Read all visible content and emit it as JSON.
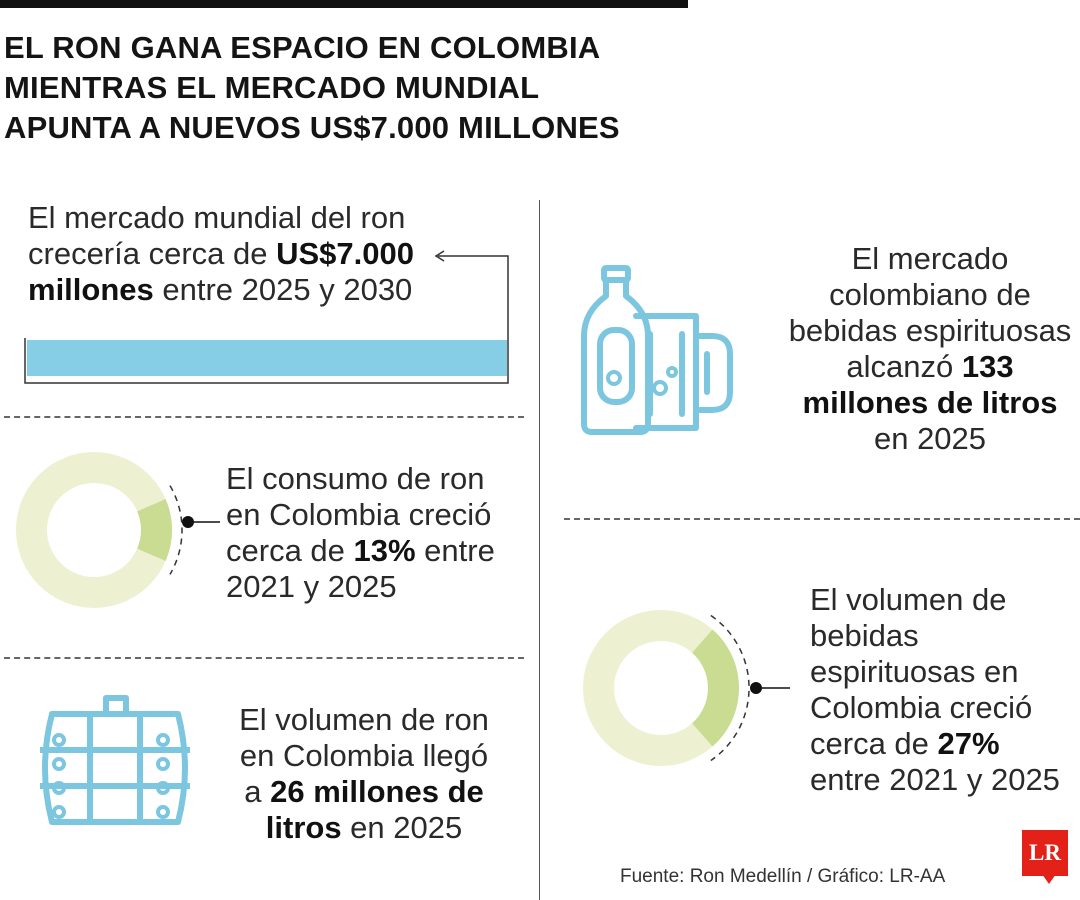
{
  "title_lines": [
    "EL RON GANA ESPACIO EN COLOMBIA",
    "MIENTRAS EL MERCADO MUNDIAL",
    "APUNTA A NUEVOS US$7.000 MILLONES"
  ],
  "blocks": {
    "market": {
      "line1": "El mercado mundial del ron",
      "line2_pre": "crecería cerca de ",
      "line2_bold": "US$7.000",
      "line3_bold": "millones",
      "line3_post": " entre 2025 y 2030"
    },
    "consumo": {
      "line1": "El consumo de ron",
      "line2": "en Colombia creció",
      "line3_pre": "cerca de ",
      "line3_bold": "13%",
      "line3_post": " entre",
      "line4": "2021 y 2025"
    },
    "volumen_ron": {
      "line1": "El volumen de ron",
      "line2": "en Colombia llegó",
      "line3_pre": "a ",
      "line3_bold": "26 millones de",
      "line4_bold": "litros",
      "line4_post": " en 2025"
    },
    "mercado_col": {
      "line1": "El mercado",
      "line2": "colombiano de",
      "line3": "bebidas espirituosas",
      "line4_pre": "alcanzó ",
      "line4_bold": "133",
      "line5_bold": "millones de litros",
      "line6": "en 2025"
    },
    "volumen_esp": {
      "line1": "El volumen de",
      "line2": "bebidas",
      "line3": "espirituosas en",
      "line4": "Colombia creció",
      "line5_pre": "cerca de ",
      "line5_bold": "27%",
      "line6": "entre 2021 y 2025"
    }
  },
  "source": "Fuente: Ron Medellín / Gráfico: LR-AA",
  "logo": "LR",
  "colors": {
    "bar_blue": "#86cde6",
    "icon_blue": "#7cc6e0",
    "donut_base": "#edf1d2",
    "donut_highlight": "#c9dc92"
  },
  "chart_data": [
    {
      "type": "pie",
      "values": [
        13,
        87
      ],
      "unit": "%"
    },
    {
      "type": "pie",
      "values": [
        27,
        73
      ],
      "unit": "%"
    }
  ]
}
